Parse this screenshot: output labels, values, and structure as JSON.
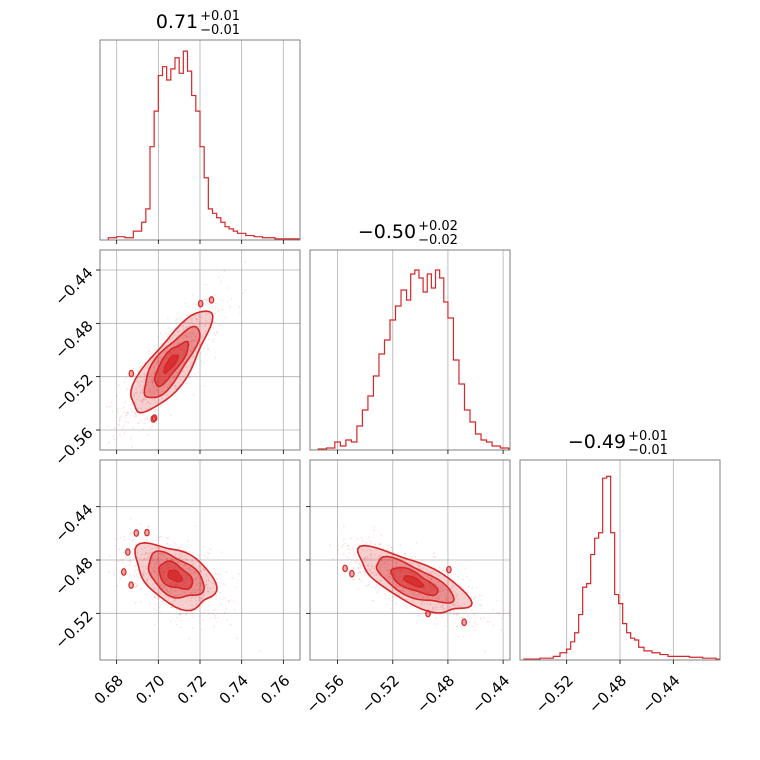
{
  "chart_data": {
    "type": "corner",
    "color": "#d62728",
    "grid": true,
    "panels": [
      {
        "id": "p00",
        "kind": "histogram",
        "param": 0,
        "title": {
          "median": "0.71",
          "plus": "+0.01",
          "minus": "−0.01"
        },
        "xlim": [
          0.672,
          0.768
        ],
        "x_ticks": [
          0.68,
          0.7,
          0.72,
          0.74,
          0.76
        ],
        "bins": [
          0.676,
          0.68,
          0.684,
          0.688,
          0.692,
          0.694,
          0.696,
          0.698,
          0.7,
          0.702,
          0.704,
          0.706,
          0.708,
          0.71,
          0.712,
          0.714,
          0.716,
          0.718,
          0.72,
          0.722,
          0.724,
          0.726,
          0.728,
          0.73,
          0.732,
          0.734,
          0.736,
          0.738,
          0.742,
          0.746,
          0.75,
          0.756,
          0.762
        ],
        "counts": [
          0.01,
          0.015,
          0.01,
          0.04,
          0.08,
          0.14,
          0.42,
          0.58,
          0.74,
          0.78,
          0.72,
          0.77,
          0.82,
          0.75,
          0.85,
          0.76,
          0.65,
          0.58,
          0.42,
          0.28,
          0.14,
          0.12,
          0.1,
          0.08,
          0.06,
          0.05,
          0.04,
          0.03,
          0.02,
          0.015,
          0.01,
          0.005,
          0.005
        ],
        "ymax": 0.9
      },
      {
        "id": "p10",
        "kind": "density",
        "px": 0,
        "py": 1,
        "xlim": [
          0.672,
          0.768
        ],
        "ylim": [
          -0.575,
          -0.425
        ],
        "x_ticks": [
          0.68,
          0.7,
          0.72,
          0.74,
          0.76
        ],
        "y_ticks": [
          -0.44,
          -0.48,
          -0.52,
          -0.56
        ],
        "y_tick_labels": [
          "−0.44",
          "−0.48",
          "−0.52",
          "−0.56"
        ],
        "center": [
          0.706,
          -0.51
        ],
        "sx": 0.0095,
        "sy": 0.019,
        "rho": 0.8
      },
      {
        "id": "p11",
        "kind": "histogram",
        "param": 1,
        "title": {
          "median": "−0.50",
          "plus": "+0.02",
          "minus": "−0.02"
        },
        "xlim": [
          -0.58,
          -0.435
        ],
        "x_ticks": [
          -0.56,
          -0.52,
          -0.48,
          -0.44
        ],
        "bins": [
          -0.574,
          -0.568,
          -0.562,
          -0.558,
          -0.554,
          -0.55,
          -0.546,
          -0.542,
          -0.538,
          -0.534,
          -0.53,
          -0.526,
          -0.522,
          -0.518,
          -0.514,
          -0.51,
          -0.507,
          -0.504,
          -0.501,
          -0.498,
          -0.495,
          -0.492,
          -0.489,
          -0.486,
          -0.483,
          -0.48,
          -0.476,
          -0.472,
          -0.468,
          -0.464,
          -0.46,
          -0.456,
          -0.452,
          -0.448,
          -0.442,
          -0.436
        ],
        "counts": [
          0.005,
          0.01,
          0.04,
          0.02,
          0.05,
          0.04,
          0.12,
          0.2,
          0.27,
          0.37,
          0.48,
          0.55,
          0.65,
          0.72,
          0.8,
          0.75,
          0.88,
          0.9,
          0.86,
          0.79,
          0.88,
          0.81,
          0.9,
          0.86,
          0.74,
          0.66,
          0.45,
          0.33,
          0.2,
          0.14,
          0.08,
          0.05,
          0.04,
          0.02,
          0.01,
          0.005
        ],
        "ymax": 1.0
      },
      {
        "id": "p20",
        "kind": "density",
        "px": 0,
        "py": 2,
        "xlim": [
          0.672,
          0.768
        ],
        "ylim": [
          -0.555,
          -0.405
        ],
        "x_ticks": [
          0.68,
          0.7,
          0.72,
          0.74,
          0.76
        ],
        "x_tick_labels": [
          "0.68",
          "0.70",
          "0.72",
          "0.74",
          "0.76"
        ],
        "y_ticks": [
          -0.44,
          -0.48,
          -0.52
        ],
        "y_tick_labels": [
          "−0.44",
          "−0.48",
          "−0.52"
        ],
        "center": [
          0.708,
          -0.492
        ],
        "sx": 0.0095,
        "sy": 0.012,
        "rho": -0.45
      },
      {
        "id": "p21",
        "kind": "density",
        "px": 1,
        "py": 2,
        "xlim": [
          -0.58,
          -0.435
        ],
        "ylim": [
          -0.555,
          -0.405
        ],
        "x_ticks": [
          -0.56,
          -0.52,
          -0.48,
          -0.44
        ],
        "x_tick_labels": [
          "−0.56",
          "−0.52",
          "−0.48",
          "−0.44"
        ],
        "y_ticks": [
          -0.44,
          -0.48,
          -0.52
        ],
        "center": [
          -0.505,
          -0.496
        ],
        "sx": 0.02,
        "sy": 0.012,
        "rho": -0.72
      },
      {
        "id": "p22",
        "kind": "histogram",
        "param": 2,
        "title": {
          "median": "−0.49",
          "plus": "+0.01",
          "minus": "−0.01"
        },
        "xlim": [
          -0.555,
          -0.405
        ],
        "x_ticks": [
          -0.52,
          -0.48,
          -0.44
        ],
        "x_tick_labels": [
          "−0.52",
          "−0.48",
          "−0.44"
        ],
        "bins": [
          -0.552,
          -0.54,
          -0.53,
          -0.525,
          -0.52,
          -0.517,
          -0.514,
          -0.511,
          -0.508,
          -0.505,
          -0.502,
          -0.499,
          -0.496,
          -0.493,
          -0.49,
          -0.487,
          -0.484,
          -0.481,
          -0.478,
          -0.475,
          -0.472,
          -0.469,
          -0.466,
          -0.462,
          -0.456,
          -0.45,
          -0.444,
          -0.436,
          -0.428,
          -0.418,
          -0.408
        ],
        "counts": [
          0.005,
          0.01,
          0.02,
          0.04,
          0.06,
          0.1,
          0.15,
          0.25,
          0.4,
          0.42,
          0.58,
          0.67,
          0.7,
          1.0,
          1.01,
          0.7,
          0.36,
          0.31,
          0.2,
          0.15,
          0.12,
          0.11,
          0.07,
          0.05,
          0.04,
          0.03,
          0.02,
          0.02,
          0.015,
          0.01,
          0.005
        ],
        "ymax": 1.1
      }
    ]
  }
}
